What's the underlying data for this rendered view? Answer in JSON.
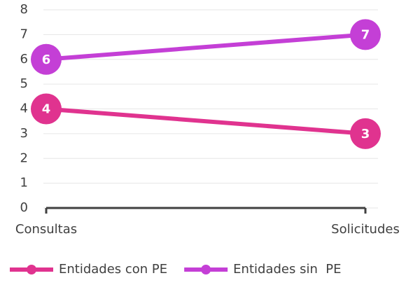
{
  "chart_data": {
    "type": "line",
    "categories": [
      "Consultas",
      "Solicitudes"
    ],
    "series": [
      {
        "name": "Entidades con PE",
        "color": "#e0338f",
        "values": [
          4,
          3
        ]
      },
      {
        "name": "Entidades sin  PE",
        "color": "#c43fd6",
        "values": [
          6,
          7
        ]
      }
    ],
    "ylim": [
      0,
      8
    ],
    "yticks": [
      0,
      1,
      2,
      3,
      4,
      5,
      6,
      7,
      8
    ],
    "grid": true,
    "legend": "bottom",
    "data_labels": true
  }
}
